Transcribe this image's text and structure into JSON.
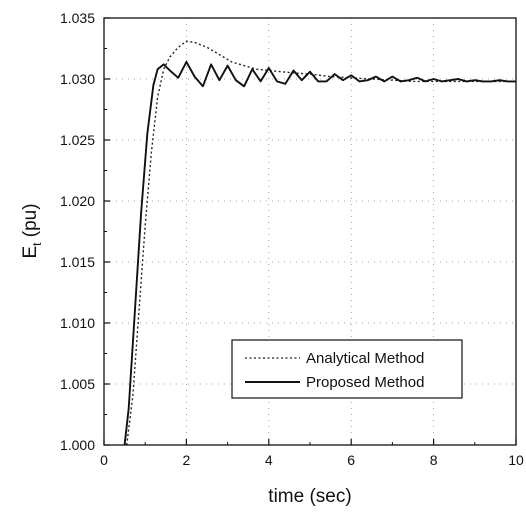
{
  "chart_data": {
    "type": "line",
    "xlabel": "time (sec)",
    "ylabel_main": "E",
    "ylabel_sub": "t",
    "ylabel_unit": " (pu)",
    "xlim": [
      0,
      10
    ],
    "ylim": [
      1.0,
      1.035
    ],
    "x_ticks": [
      "0",
      "2",
      "4",
      "6",
      "8",
      "10"
    ],
    "y_ticks": [
      "1.000",
      "1.005",
      "1.010",
      "1.015",
      "1.020",
      "1.025",
      "1.030",
      "1.035"
    ],
    "grid": true,
    "legend_position": "lower-right",
    "series": [
      {
        "name": "Analytical Method",
        "style": "dotted",
        "color": "#222222",
        "x": [
          0.55,
          0.7,
          0.85,
          1.0,
          1.15,
          1.3,
          1.45,
          1.6,
          1.8,
          2.0,
          2.2,
          2.5,
          2.8,
          3.1,
          3.4,
          3.7,
          4.0,
          4.3,
          4.6,
          5.0,
          5.5,
          6.0,
          6.5,
          7.0,
          7.5,
          8.0,
          8.5,
          9.0,
          9.5,
          10.0
        ],
        "y": [
          1.0,
          1.004,
          1.011,
          1.018,
          1.024,
          1.0285,
          1.0308,
          1.0318,
          1.0326,
          1.0331,
          1.033,
          1.0326,
          1.032,
          1.0314,
          1.0311,
          1.0308,
          1.0307,
          1.0306,
          1.0305,
          1.0304,
          1.0302,
          1.0301,
          1.03,
          1.0299,
          1.0298,
          1.0298,
          1.0298,
          1.0298,
          1.0298,
          1.0298
        ]
      },
      {
        "name": "Proposed Method",
        "style": "solid",
        "color": "#111111",
        "x": [
          0.5,
          0.6,
          0.75,
          0.9,
          1.05,
          1.2,
          1.3,
          1.45,
          1.6,
          1.8,
          2.0,
          2.2,
          2.4,
          2.6,
          2.8,
          3.0,
          3.2,
          3.4,
          3.6,
          3.8,
          4.0,
          4.2,
          4.4,
          4.6,
          4.8,
          5.0,
          5.2,
          5.4,
          5.6,
          5.8,
          6.0,
          6.2,
          6.4,
          6.6,
          6.8,
          7.0,
          7.2,
          7.4,
          7.6,
          7.8,
          8.0,
          8.2,
          8.4,
          8.6,
          8.8,
          9.0,
          9.2,
          9.4,
          9.6,
          9.8,
          10.0
        ],
        "y": [
          1.0,
          1.003,
          1.011,
          1.019,
          1.0255,
          1.0295,
          1.0308,
          1.0312,
          1.0307,
          1.0301,
          1.0314,
          1.0302,
          1.0294,
          1.0312,
          1.0299,
          1.0311,
          1.0299,
          1.0294,
          1.0308,
          1.0298,
          1.0309,
          1.0298,
          1.0296,
          1.0307,
          1.0299,
          1.0306,
          1.0298,
          1.0298,
          1.0304,
          1.0299,
          1.0303,
          1.0298,
          1.0299,
          1.0302,
          1.0298,
          1.0302,
          1.0298,
          1.0299,
          1.0301,
          1.0298,
          1.03,
          1.0298,
          1.0299,
          1.03,
          1.0298,
          1.0299,
          1.0298,
          1.0298,
          1.0299,
          1.0298,
          1.0298
        ]
      }
    ]
  }
}
